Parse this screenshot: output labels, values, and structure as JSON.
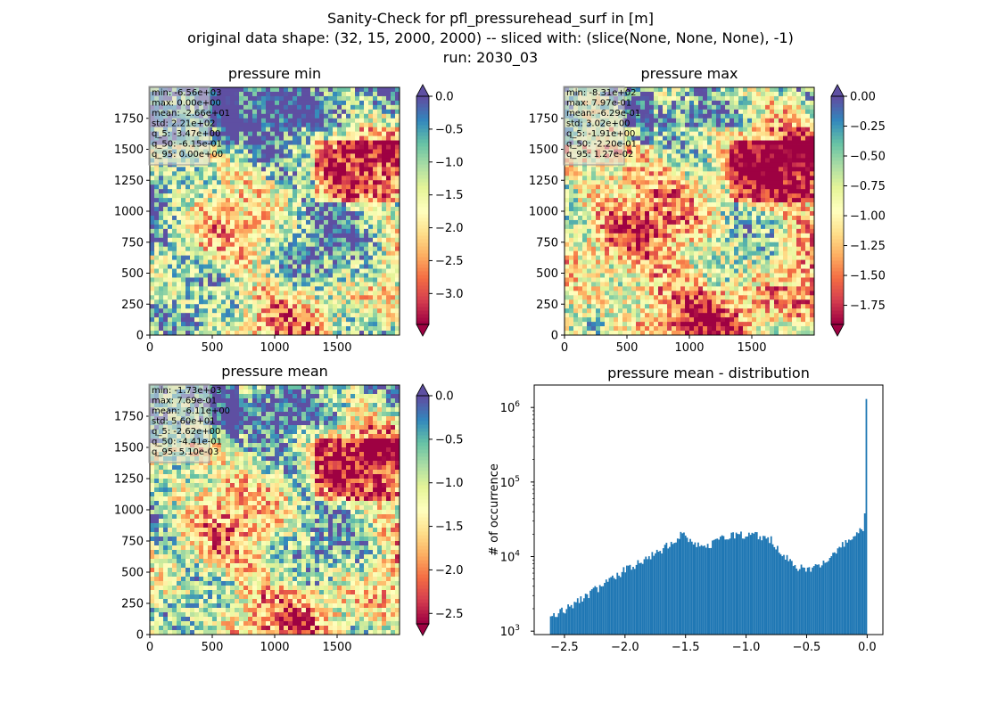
{
  "figure": {
    "title_lines": [
      "Sanity-Check for pfl_pressurehead_surf in [m]",
      "original data shape: (32, 15, 2000, 2000) -- sliced with: (slice(None, None, None), -1)",
      "run: 2030_03"
    ]
  },
  "chart_data": [
    {
      "type": "heatmap",
      "title": "pressure min",
      "xlim": [
        0,
        2000
      ],
      "ylim": [
        0,
        2000
      ],
      "xticks": [
        0,
        500,
        1000,
        1500
      ],
      "yticks": [
        0,
        250,
        500,
        750,
        1000,
        1250,
        1500,
        1750
      ],
      "colormap": "Spectral",
      "colorbar": {
        "range": [
          -3.47,
          0.0
        ],
        "ticks": [
          "0.0",
          "−0.5",
          "−1.0",
          "−1.5",
          "−2.0",
          "−2.5",
          "−3.0"
        ],
        "extend": "both"
      },
      "stats": [
        "min: -6.56e+03",
        "max: 0.00e+00",
        "mean: -2.66e+01",
        "std: 2.21e+02",
        "q_5: -3.47e+00",
        "q_50: -6.15e-01",
        "q_95: 0.00e+00"
      ]
    },
    {
      "type": "heatmap",
      "title": "pressure max",
      "xlim": [
        0,
        2000
      ],
      "ylim": [
        0,
        2000
      ],
      "xticks": [
        0,
        500,
        1000,
        1500
      ],
      "yticks": [
        0,
        250,
        500,
        750,
        1000,
        1250,
        1500,
        1750
      ],
      "colormap": "Spectral",
      "colorbar": {
        "range": [
          -1.91,
          0.0
        ],
        "ticks": [
          "0.00",
          "−0.25",
          "−0.50",
          "−0.75",
          "−1.00",
          "−1.25",
          "−1.50",
          "−1.75"
        ],
        "extend": "both"
      },
      "stats": [
        "min: -8.31e+02",
        "max: 7.97e-01",
        "mean: -6.29e-01",
        "std: 3.02e+00",
        "q_5: -1.91e+00",
        "q_50: -2.20e-01",
        "q_95: 1.27e-02"
      ]
    },
    {
      "type": "heatmap",
      "title": "pressure mean",
      "xlim": [
        0,
        2000
      ],
      "ylim": [
        0,
        2000
      ],
      "xticks": [
        0,
        500,
        1000,
        1500
      ],
      "yticks": [
        0,
        250,
        500,
        750,
        1000,
        1250,
        1500,
        1750
      ],
      "colormap": "Spectral",
      "colorbar": {
        "range": [
          -2.62,
          0.0
        ],
        "ticks": [
          "0.0",
          "−0.5",
          "−1.0",
          "−1.5",
          "−2.0",
          "−2.5"
        ],
        "extend": "both"
      },
      "stats": [
        "min: -1.73e+03",
        "max: 7.69e-01",
        "mean: -6.11e+00",
        "std: 5.60e+01",
        "q_5: -2.62e+00",
        "q_50: -4.41e-01",
        "q_95: 5.10e-03"
      ]
    },
    {
      "type": "bar",
      "title": "pressure mean - distribution",
      "ylabel": "# of occurrence",
      "xlabel": "",
      "yscale": "log",
      "xlim": [
        -2.75,
        0.13
      ],
      "ylim": [
        900,
        2000000
      ],
      "xticks": [
        "−2.5",
        "−2.0",
        "−1.5",
        "−1.0",
        "−0.5",
        "0.0"
      ],
      "yticks": [
        "10^3",
        "10^4",
        "10^5",
        "10^6"
      ],
      "color": "#1f77b4",
      "bins": {
        "x": [
          -2.62,
          -2.4,
          -2.2,
          -2.0,
          -1.8,
          -1.6,
          -1.55,
          -1.5,
          -1.4,
          -1.3,
          -1.2,
          -1.1,
          -1.0,
          -0.9,
          -0.8,
          -0.7,
          -0.6,
          -0.5,
          -0.4,
          -0.3,
          -0.2,
          -0.1,
          -0.03,
          -0.01,
          0.0
        ],
        "counts": [
          1500,
          2400,
          4000,
          6500,
          9500,
          16000,
          20000,
          19000,
          15000,
          14000,
          17000,
          19500,
          20000,
          19000,
          17000,
          11000,
          7500,
          6500,
          7500,
          10000,
          14000,
          19000,
          24000,
          38000,
          1300000
        ]
      }
    }
  ]
}
